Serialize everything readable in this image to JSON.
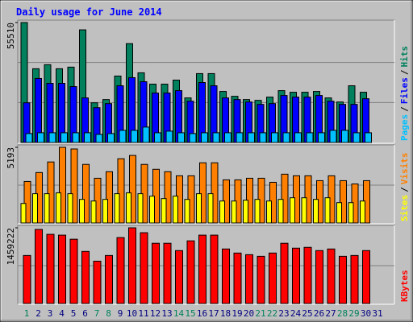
{
  "chart_data": {
    "type": "bar",
    "title": "Daily usage for June 2014",
    "legend_separator": "/",
    "categories": [
      "1",
      "2",
      "3",
      "4",
      "5",
      "6",
      "7",
      "8",
      "9",
      "10",
      "11",
      "12",
      "13",
      "14",
      "15",
      "16",
      "17",
      "18",
      "19",
      "20",
      "21",
      "22",
      "23",
      "24",
      "25",
      "26",
      "27",
      "28",
      "29",
      "30",
      "31"
    ],
    "category_colors": [
      "#00805c",
      "#000080",
      "#000080",
      "#000080",
      "#000080",
      "#000080",
      "#00805c",
      "#00805c",
      "#000080",
      "#000080",
      "#000080",
      "#000080",
      "#000080",
      "#00805c",
      "#00805c",
      "#000080",
      "#000080",
      "#000080",
      "#000080",
      "#000080",
      "#00805c",
      "#00805c",
      "#000080",
      "#000080",
      "#000080",
      "#000080",
      "#000080",
      "#00805c",
      "#00805c",
      "#000080",
      "#000080"
    ],
    "panels": [
      {
        "ylim": [
          0,
          55510
        ],
        "yticks": [
          55510
        ],
        "series": [
          {
            "name": "Hits",
            "color": "#00805c",
            "values": [
              55510,
              34130,
              36006,
              34130,
              34881,
              52134,
              18378,
              19878,
              30755,
              45758,
              32256,
              27005,
              27005,
              28880,
              20628,
              31880,
              31880,
              23629,
              21379,
              19878,
              19503,
              21004,
              24004,
              23254,
              23254,
              23629,
              20628,
              18753,
              26255,
              23254,
              null
            ]
          },
          {
            "name": "Files",
            "color": "#0000ff",
            "values": [
              18378,
              29630,
              27380,
              27380,
              25879,
              20628,
              16128,
              18003,
              26255,
              30005,
              28130,
              22879,
              22879,
              24004,
              19128,
              27755,
              26255,
              20628,
              19878,
              18753,
              17628,
              18003,
              21754,
              21004,
              21004,
              21754,
              19128,
              17628,
              17628,
              20253,
              null
            ]
          },
          {
            "name": "Pages",
            "color": "#00c0ff",
            "values": [
              4126,
              4501,
              4501,
              4501,
              4501,
              4501,
              3751,
              4126,
              5626,
              5626,
              7126,
              4501,
              5251,
              4501,
              4126,
              4501,
              4501,
              4501,
              4501,
              4501,
              4501,
              4501,
              4501,
              4501,
              4501,
              4501,
              5626,
              5626,
              4501,
              4501,
              null
            ]
          }
        ]
      },
      {
        "ylim": [
          0,
          5193
        ],
        "yticks": [
          5193
        ],
        "series": [
          {
            "name": "Visits",
            "color": "#ff8000",
            "values": [
              2848,
              3462,
              4188,
              5193,
              5081,
              4020,
              3071,
              3518,
              4411,
              4635,
              4020,
              3685,
              3518,
              3239,
              3239,
              4132,
              4132,
              2960,
              2960,
              3071,
              3071,
              2792,
              3350,
              3239,
              3239,
              2904,
              3239,
              2904,
              2680,
              2904,
              null
            ]
          },
          {
            "name": "Sites",
            "color": "#ffff00",
            "values": [
              1340,
              2010,
              2010,
              2066,
              2010,
              1619,
              1508,
              1619,
              2010,
              2066,
              2010,
              1843,
              1675,
              1843,
              1619,
              2010,
              2010,
              1508,
              1508,
              1564,
              1619,
              1508,
              1619,
              1731,
              1731,
              1619,
              1731,
              1396,
              1396,
              1508,
              null
            ]
          }
        ]
      },
      {
        "ylim": [
          0,
          1459222
        ],
        "yticks": [
          1459222
        ],
        "series": [
          {
            "name": "KBytes",
            "color": "#ff0000",
            "values": [
              925700,
              1427840,
              1333700,
              1318000,
              1239500,
              1004200,
              815900,
              925700,
              1270900,
              1459222,
              1365100,
              1161100,
              1161100,
              1019900,
              1208100,
              1318000,
              1318000,
              1051200,
              972800,
              941400,
              910000,
              972800,
              1161100,
              1067000,
              1082600,
              1019900,
              1051200,
              910000,
              925700,
              1019900,
              null
            ]
          }
        ]
      }
    ]
  }
}
